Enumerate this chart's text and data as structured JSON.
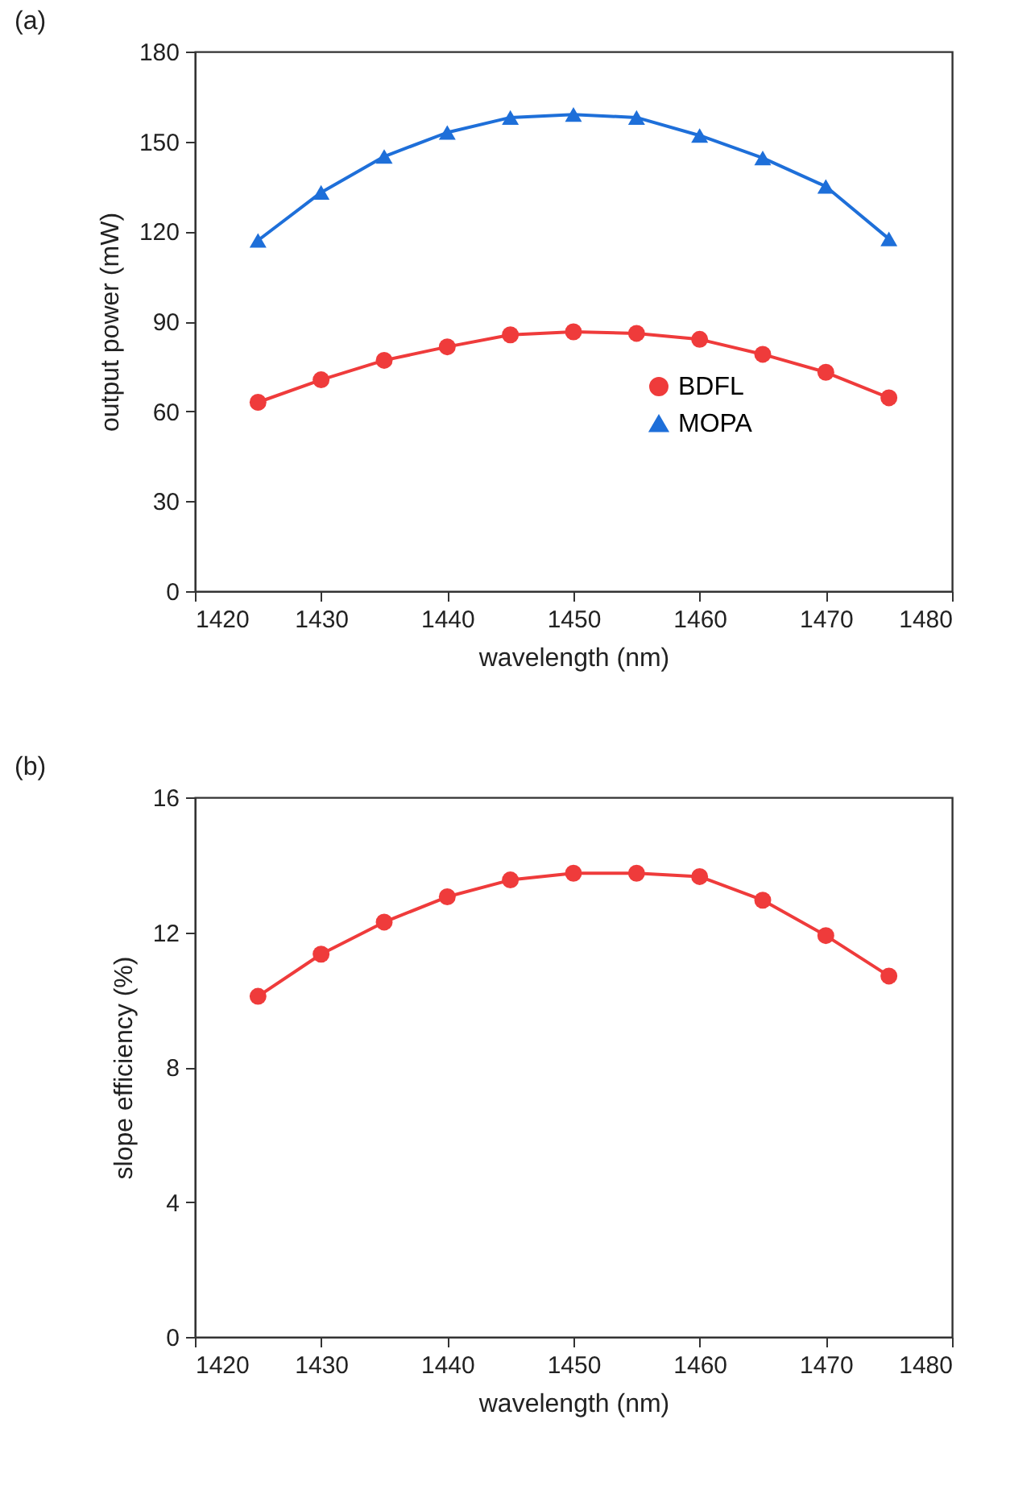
{
  "chart_data": [
    {
      "type": "line",
      "title": "(a)",
      "xlabel": "wavelength (nm)",
      "ylabel": "output power (mW)",
      "x": [
        1425,
        1430,
        1435,
        1440,
        1445,
        1450,
        1455,
        1460,
        1465,
        1470,
        1475
      ],
      "xlim": [
        1420,
        1480
      ],
      "xticks": [
        1420,
        1430,
        1440,
        1450,
        1460,
        1470,
        1480
      ],
      "ylim": [
        0,
        180
      ],
      "yticks": [
        0,
        30,
        60,
        90,
        120,
        150,
        180
      ],
      "legend": "bottom right",
      "grid": false,
      "series": [
        {
          "name": "BDFL",
          "color": "#ef3b3b",
          "marker": "circle",
          "values": [
            63,
            70.5,
            77,
            81.5,
            85.5,
            86.5,
            86,
            84,
            79,
            73,
            64.5
          ]
        },
        {
          "name": "MOPA",
          "color": "#1e6fd9",
          "marker": "triangle",
          "values": [
            117,
            133,
            145,
            153,
            158,
            159,
            158,
            152,
            144.5,
            135,
            117.5
          ]
        }
      ]
    },
    {
      "type": "line",
      "title": "(b)",
      "xlabel": "wavelength (nm)",
      "ylabel": "slope efficiency (%)",
      "x": [
        1425,
        1430,
        1435,
        1440,
        1445,
        1450,
        1455,
        1460,
        1465,
        1470,
        1475
      ],
      "xlim": [
        1420,
        1480
      ],
      "xticks": [
        1420,
        1430,
        1440,
        1450,
        1460,
        1470,
        1480
      ],
      "ylim": [
        0,
        16
      ],
      "yticks": [
        0,
        4,
        8,
        12,
        16
      ],
      "legend": "bottom right",
      "grid": false,
      "series": [
        {
          "name": "BDFL",
          "color": "#ef3b3b",
          "marker": "circle",
          "values": [
            10.1,
            11.35,
            12.3,
            13.05,
            13.55,
            13.75,
            13.75,
            13.65,
            12.95,
            11.9,
            10.7
          ]
        }
      ]
    }
  ]
}
